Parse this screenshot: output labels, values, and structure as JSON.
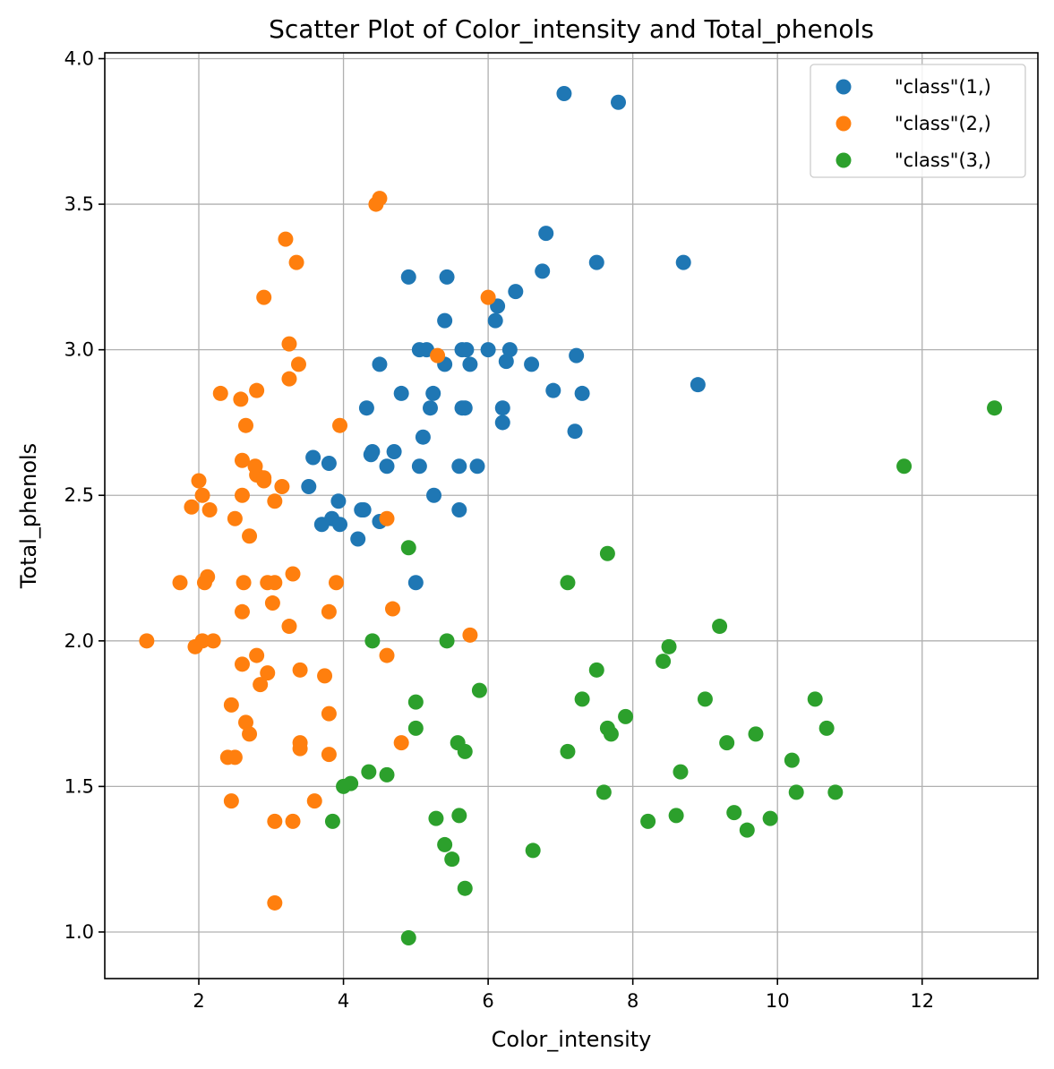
{
  "chart_data": {
    "type": "scatter",
    "title": "Scatter Plot of Color_intensity and Total_phenols",
    "xlabel": "Color_intensity",
    "ylabel": "Total_phenols",
    "xlim": [
      0.7,
      13.6
    ],
    "ylim": [
      0.84,
      4.02
    ],
    "xticks": [
      2,
      4,
      6,
      8,
      10,
      12
    ],
    "yticks": [
      1.0,
      1.5,
      2.0,
      2.5,
      3.0,
      3.5,
      4.0
    ],
    "xtick_labels": [
      "2",
      "4",
      "6",
      "8",
      "10",
      "12"
    ],
    "ytick_labels": [
      "1.0",
      "1.5",
      "2.0",
      "2.5",
      "3.0",
      "3.5",
      "4.0"
    ],
    "grid": true,
    "legend_position": "top-right",
    "series": [
      {
        "name": "\"class\"(1,)",
        "color": "#1f77b4",
        "points": [
          [
            7.05,
            3.88
          ],
          [
            7.8,
            3.85
          ],
          [
            6.8,
            3.4
          ],
          [
            8.7,
            3.3
          ],
          [
            7.5,
            3.3
          ],
          [
            6.75,
            3.27
          ],
          [
            4.9,
            3.25
          ],
          [
            5.43,
            3.25
          ],
          [
            6.38,
            3.2
          ],
          [
            6.13,
            3.15
          ],
          [
            5.4,
            3.1
          ],
          [
            6.1,
            3.1
          ],
          [
            5.05,
            3.0
          ],
          [
            5.15,
            3.0
          ],
          [
            5.64,
            3.0
          ],
          [
            5.7,
            3.0
          ],
          [
            6.0,
            3.0
          ],
          [
            6.3,
            3.0
          ],
          [
            7.22,
            2.98
          ],
          [
            4.5,
            2.95
          ],
          [
            5.4,
            2.95
          ],
          [
            5.75,
            2.95
          ],
          [
            6.25,
            2.96
          ],
          [
            6.6,
            2.95
          ],
          [
            8.9,
            2.88
          ],
          [
            4.8,
            2.85
          ],
          [
            5.24,
            2.85
          ],
          [
            6.9,
            2.86
          ],
          [
            7.3,
            2.85
          ],
          [
            4.32,
            2.8
          ],
          [
            5.2,
            2.8
          ],
          [
            5.64,
            2.8
          ],
          [
            5.68,
            2.8
          ],
          [
            6.2,
            2.8
          ],
          [
            6.2,
            2.75
          ],
          [
            7.2,
            2.72
          ],
          [
            5.1,
            2.7
          ],
          [
            3.58,
            2.63
          ],
          [
            4.38,
            2.64
          ],
          [
            4.4,
            2.65
          ],
          [
            4.7,
            2.65
          ],
          [
            3.8,
            2.61
          ],
          [
            4.6,
            2.6
          ],
          [
            5.05,
            2.6
          ],
          [
            5.6,
            2.6
          ],
          [
            5.85,
            2.6
          ],
          [
            3.52,
            2.53
          ],
          [
            5.25,
            2.5
          ],
          [
            3.93,
            2.48
          ],
          [
            4.28,
            2.45
          ],
          [
            4.25,
            2.45
          ],
          [
            5.6,
            2.45
          ],
          [
            3.84,
            2.42
          ],
          [
            4.5,
            2.41
          ],
          [
            3.7,
            2.4
          ],
          [
            3.95,
            2.4
          ],
          [
            4.2,
            2.35
          ],
          [
            5.0,
            2.2
          ]
        ]
      },
      {
        "name": "\"class\"(2,)",
        "color": "#ff7f0e",
        "points": [
          [
            4.5,
            3.52
          ],
          [
            4.45,
            3.5
          ],
          [
            3.2,
            3.38
          ],
          [
            3.35,
            3.3
          ],
          [
            2.9,
            3.18
          ],
          [
            6.0,
            3.18
          ],
          [
            3.25,
            3.02
          ],
          [
            5.3,
            2.98
          ],
          [
            3.38,
            2.95
          ],
          [
            3.25,
            2.9
          ],
          [
            2.3,
            2.85
          ],
          [
            2.8,
            2.86
          ],
          [
            2.58,
            2.83
          ],
          [
            2.65,
            2.74
          ],
          [
            3.95,
            2.74
          ],
          [
            2.6,
            2.62
          ],
          [
            2.78,
            2.6
          ],
          [
            2.8,
            2.57
          ],
          [
            2.9,
            2.55
          ],
          [
            2.9,
            2.56
          ],
          [
            2.0,
            2.55
          ],
          [
            3.15,
            2.53
          ],
          [
            2.05,
            2.5
          ],
          [
            2.6,
            2.5
          ],
          [
            3.05,
            2.48
          ],
          [
            1.9,
            2.46
          ],
          [
            2.15,
            2.45
          ],
          [
            2.5,
            2.42
          ],
          [
            4.6,
            2.42
          ],
          [
            2.7,
            2.36
          ],
          [
            3.3,
            2.23
          ],
          [
            2.12,
            2.22
          ],
          [
            2.08,
            2.2
          ],
          [
            1.74,
            2.2
          ],
          [
            2.62,
            2.2
          ],
          [
            2.95,
            2.2
          ],
          [
            3.05,
            2.2
          ],
          [
            3.9,
            2.2
          ],
          [
            3.02,
            2.13
          ],
          [
            4.68,
            2.11
          ],
          [
            2.6,
            2.1
          ],
          [
            3.8,
            2.1
          ],
          [
            3.25,
            2.05
          ],
          [
            5.75,
            2.02
          ],
          [
            1.28,
            2.0
          ],
          [
            2.05,
            2.0
          ],
          [
            2.2,
            2.0
          ],
          [
            1.95,
            1.98
          ],
          [
            2.8,
            1.95
          ],
          [
            4.6,
            1.95
          ],
          [
            2.6,
            1.92
          ],
          [
            2.95,
            1.89
          ],
          [
            3.4,
            1.9
          ],
          [
            3.74,
            1.88
          ],
          [
            2.85,
            1.85
          ],
          [
            2.45,
            1.78
          ],
          [
            3.8,
            1.75
          ],
          [
            2.65,
            1.72
          ],
          [
            2.7,
            1.68
          ],
          [
            3.4,
            1.65
          ],
          [
            4.8,
            1.65
          ],
          [
            3.4,
            1.63
          ],
          [
            3.8,
            1.61
          ],
          [
            2.4,
            1.6
          ],
          [
            2.5,
            1.6
          ],
          [
            2.45,
            1.45
          ],
          [
            3.6,
            1.45
          ],
          [
            3.05,
            1.38
          ],
          [
            3.3,
            1.38
          ],
          [
            3.05,
            1.1
          ]
        ]
      },
      {
        "name": "\"class\"(3,)",
        "color": "#2ca02c",
        "points": [
          [
            13.0,
            2.8
          ],
          [
            11.75,
            2.6
          ],
          [
            4.9,
            2.32
          ],
          [
            7.65,
            2.3
          ],
          [
            7.1,
            2.2
          ],
          [
            9.2,
            2.05
          ],
          [
            4.4,
            2.0
          ],
          [
            5.43,
            2.0
          ],
          [
            8.5,
            1.98
          ],
          [
            8.42,
            1.93
          ],
          [
            7.5,
            1.9
          ],
          [
            5.88,
            1.83
          ],
          [
            7.3,
            1.8
          ],
          [
            9.0,
            1.8
          ],
          [
            10.52,
            1.8
          ],
          [
            5.0,
            1.79
          ],
          [
            7.9,
            1.74
          ],
          [
            5.0,
            1.7
          ],
          [
            7.65,
            1.7
          ],
          [
            10.68,
            1.7
          ],
          [
            7.7,
            1.68
          ],
          [
            9.7,
            1.68
          ],
          [
            5.58,
            1.65
          ],
          [
            9.3,
            1.65
          ],
          [
            5.68,
            1.62
          ],
          [
            7.1,
            1.62
          ],
          [
            10.2,
            1.59
          ],
          [
            8.66,
            1.55
          ],
          [
            4.35,
            1.55
          ],
          [
            4.6,
            1.54
          ],
          [
            4.1,
            1.51
          ],
          [
            4.0,
            1.5
          ],
          [
            7.6,
            1.48
          ],
          [
            10.26,
            1.48
          ],
          [
            10.8,
            1.48
          ],
          [
            9.4,
            1.41
          ],
          [
            5.6,
            1.4
          ],
          [
            8.6,
            1.4
          ],
          [
            5.28,
            1.39
          ],
          [
            9.9,
            1.39
          ],
          [
            3.85,
            1.38
          ],
          [
            8.21,
            1.38
          ],
          [
            9.58,
            1.35
          ],
          [
            5.4,
            1.3
          ],
          [
            6.62,
            1.28
          ],
          [
            5.5,
            1.25
          ],
          [
            5.68,
            1.15
          ],
          [
            4.9,
            0.98
          ]
        ]
      }
    ]
  }
}
